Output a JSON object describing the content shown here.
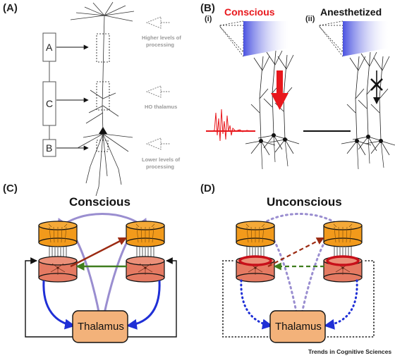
{
  "panels": {
    "A": {
      "label": "(A)",
      "boxes": [
        "A",
        "C",
        "B"
      ],
      "annotations": [
        "Higher levels of",
        "processing",
        "HO thalamus",
        "Lower levels of",
        "processing"
      ]
    },
    "B": {
      "label": "(B)",
      "sub_i": "(i)",
      "sub_ii": "(ii)",
      "conscious": "Conscious",
      "anesthetized": "Anesthetized"
    },
    "C": {
      "label": "(C)",
      "title": "Conscious",
      "thalamus": "Thalamus"
    },
    "D": {
      "label": "(D)",
      "title": "Unconscious",
      "thalamus": "Thalamus"
    }
  },
  "footer": "Trends in Cognitive Sciences",
  "colors": {
    "red": "#e8171c",
    "purple": "#9a8ed0",
    "blue": "#1f2fd6",
    "green": "#3f7d1e",
    "darkred": "#9b2a12",
    "orange": "#f29a1b",
    "salmon": "#e57a62",
    "thalamus": "#f3b27a"
  }
}
